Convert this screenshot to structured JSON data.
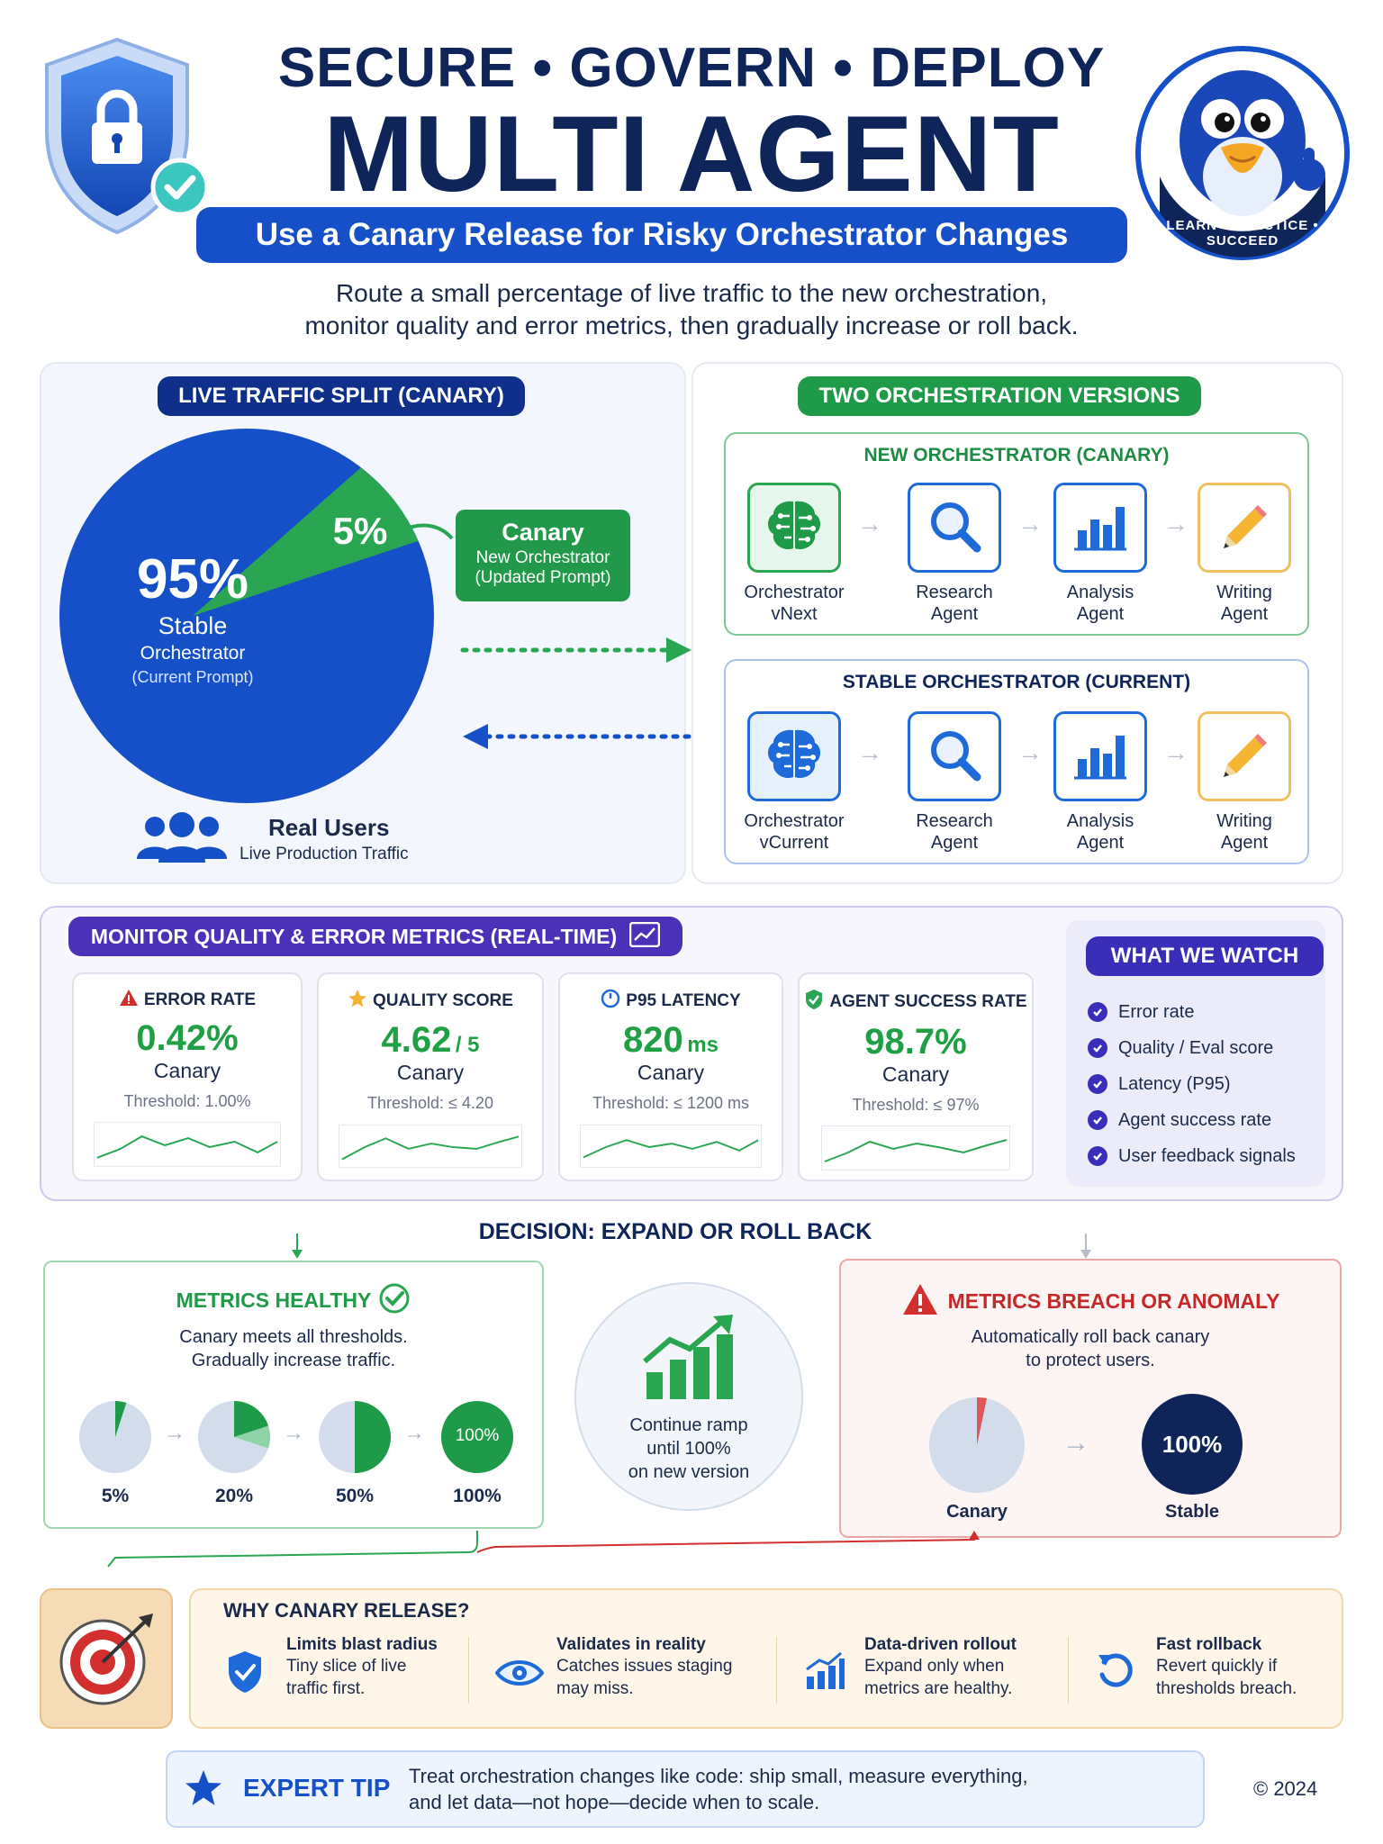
{
  "header": {
    "line1": "SECURE • GOVERN • DEPLOY",
    "line2": "MULTI AGENT",
    "subtitle": "Use a Canary Release for Risky Orchestrator Changes",
    "intro_line1": "Route a small percentage of live traffic to the new orchestration,",
    "intro_line2": "monitor quality and error metrics, then gradually increase or roll back."
  },
  "mascot": {
    "badge_text": "LEARN • PRACTICE • SUCCEED"
  },
  "traffic": {
    "title": "LIVE TRAFFIC SPLIT (CANARY)",
    "stable_pct": "95%",
    "stable_label": "Stable",
    "stable_sub": "Orchestrator",
    "stable_note": "(Current Prompt)",
    "canary_pct": "5%",
    "canary_title": "Canary",
    "canary_sub": "New Orchestrator",
    "canary_note": "(Updated Prompt)",
    "users_title": "Real Users",
    "users_sub": "Live Production Traffic",
    "stable_color": "#1650c8",
    "canary_color": "#2aa653"
  },
  "versions": {
    "title": "TWO ORCHESTRATION VERSIONS",
    "new": {
      "title": "NEW ORCHESTRATOR (CANARY)",
      "agents": [
        {
          "l1": "Orchestrator",
          "l2": "vNext",
          "icon": "brain-icon"
        },
        {
          "l1": "Research",
          "l2": "Agent",
          "icon": "magnifier-icon"
        },
        {
          "l1": "Analysis",
          "l2": "Agent",
          "icon": "bar-chart-icon"
        },
        {
          "l1": "Writing",
          "l2": "Agent",
          "icon": "pencil-icon"
        }
      ]
    },
    "stable": {
      "title": "STABLE ORCHESTRATOR (CURRENT)",
      "agents": [
        {
          "l1": "Orchestrator",
          "l2": "vCurrent",
          "icon": "brain-icon"
        },
        {
          "l1": "Research",
          "l2": "Agent",
          "icon": "magnifier-icon"
        },
        {
          "l1": "Analysis",
          "l2": "Agent",
          "icon": "bar-chart-icon"
        },
        {
          "l1": "Writing",
          "l2": "Agent",
          "icon": "pencil-icon"
        }
      ]
    }
  },
  "monitor": {
    "title": "MONITOR QUALITY & ERROR METRICS (REAL-TIME)",
    "metrics": [
      {
        "title": "ERROR RATE",
        "value": "0.42%",
        "unit": "",
        "sub": "Canary",
        "threshold": "Threshold: 1.00%"
      },
      {
        "title": "QUALITY SCORE",
        "value": "4.62",
        "unit": "/ 5",
        "sub": "Canary",
        "threshold": "Threshold: ≤ 4.20"
      },
      {
        "title": "P95 LATENCY",
        "value": "820",
        "unit": "ms",
        "sub": "Canary",
        "threshold": "Threshold: ≤ 1200 ms"
      },
      {
        "title": "AGENT SUCCESS RATE",
        "value": "98.7%",
        "unit": "",
        "sub": "Canary",
        "threshold": "Threshold: ≤ 97%"
      }
    ],
    "watch_title": "WHAT WE WATCH",
    "watch_items": [
      "Error rate",
      "Quality / Eval score",
      "Latency (P95)",
      "Agent success rate",
      "User feedback signals"
    ]
  },
  "decision": {
    "title": "DECISION: EXPAND OR ROLL BACK",
    "healthy": {
      "title": "METRICS HEALTHY",
      "desc1": "Canary meets all thresholds.",
      "desc2": "Gradually increase traffic.",
      "steps": [
        {
          "label": "5%",
          "fraction": 0.05
        },
        {
          "label": "20%",
          "fraction": 0.2
        },
        {
          "label": "50%",
          "fraction": 0.5
        },
        {
          "label": "100%",
          "fraction": 1.0,
          "inner": "100%"
        }
      ]
    },
    "center": {
      "l1": "Continue ramp",
      "l2": "until 100%",
      "l3": "on new version"
    },
    "breach": {
      "title": "METRICS BREACH OR ANOMALY",
      "desc1": "Automatically roll back canary",
      "desc2": "to protect users.",
      "canary_label": "Canary",
      "stable_label": "Stable",
      "stable_inner": "100%"
    }
  },
  "why": {
    "title": "WHY CANARY RELEASE?",
    "items": [
      {
        "title": "Limits blast radius",
        "d1": "Tiny slice of live",
        "d2": "traffic first.",
        "icon": "shield-check-icon"
      },
      {
        "title": "Validates in reality",
        "d1": "Catches issues staging",
        "d2": "may miss.",
        "icon": "eye-icon"
      },
      {
        "title": "Data-driven rollout",
        "d1": "Expand only when",
        "d2": "metrics are healthy.",
        "icon": "growth-chart-icon"
      },
      {
        "title": "Fast rollback",
        "d1": "Revert quickly if",
        "d2": "thresholds breach.",
        "icon": "rollback-icon"
      }
    ]
  },
  "tip": {
    "label": "EXPERT TIP",
    "line1": "Treat orchestration changes like code: ship small, measure everything,",
    "line2": "and let data—not hope—decide when to scale.",
    "copyright": "© 2024"
  }
}
